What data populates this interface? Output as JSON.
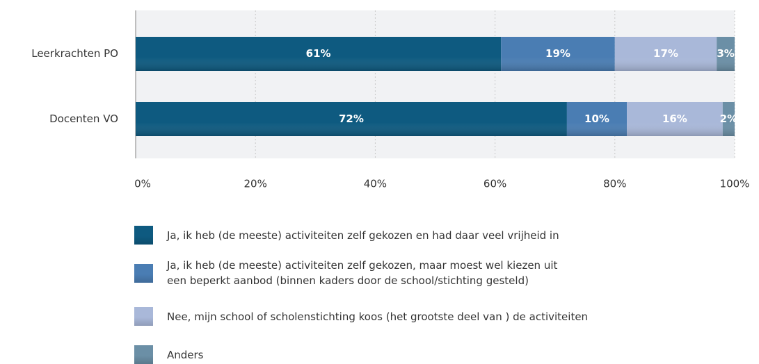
{
  "chart_data": {
    "type": "stacked_bar_horizontal",
    "categories": [
      "Leerkrachten PO",
      "Docenten VO"
    ],
    "series": [
      {
        "name": "Ja, ik heb (de meeste) activiteiten zelf gekozen en had daar veel vrijheid in",
        "color": "#0e5a80",
        "values": [
          61,
          72
        ],
        "value_labels": [
          "61%",
          "72%"
        ]
      },
      {
        "name": "Ja, ik heb (de meeste) activiteiten zelf gekozen, maar moest wel kiezen uit\neen beperkt aanbod (binnen kaders door de school/stichting gesteld)",
        "color": "#4a7db3",
        "values": [
          19,
          10
        ],
        "value_labels": [
          "19%",
          "10%"
        ]
      },
      {
        "name": "Nee, mijn school of scholenstichting koos (het grootste deel van ) de activiteiten",
        "color": "#a9b8d9",
        "values": [
          17,
          16
        ],
        "value_labels": [
          "17%",
          "16%"
        ]
      },
      {
        "name": "Anders",
        "color": "#6b8fa6",
        "values": [
          3,
          2
        ],
        "value_labels": [
          "3%",
          "2%"
        ]
      }
    ],
    "xlim": [
      0,
      100
    ],
    "xticks": [
      {
        "value": 0,
        "label": "0%"
      },
      {
        "value": 20,
        "label": "20%"
      },
      {
        "value": 40,
        "label": "40%"
      },
      {
        "value": 60,
        "label": "60%"
      },
      {
        "value": 80,
        "label": "80%"
      },
      {
        "value": 100,
        "label": "100%"
      }
    ],
    "grid": true
  }
}
